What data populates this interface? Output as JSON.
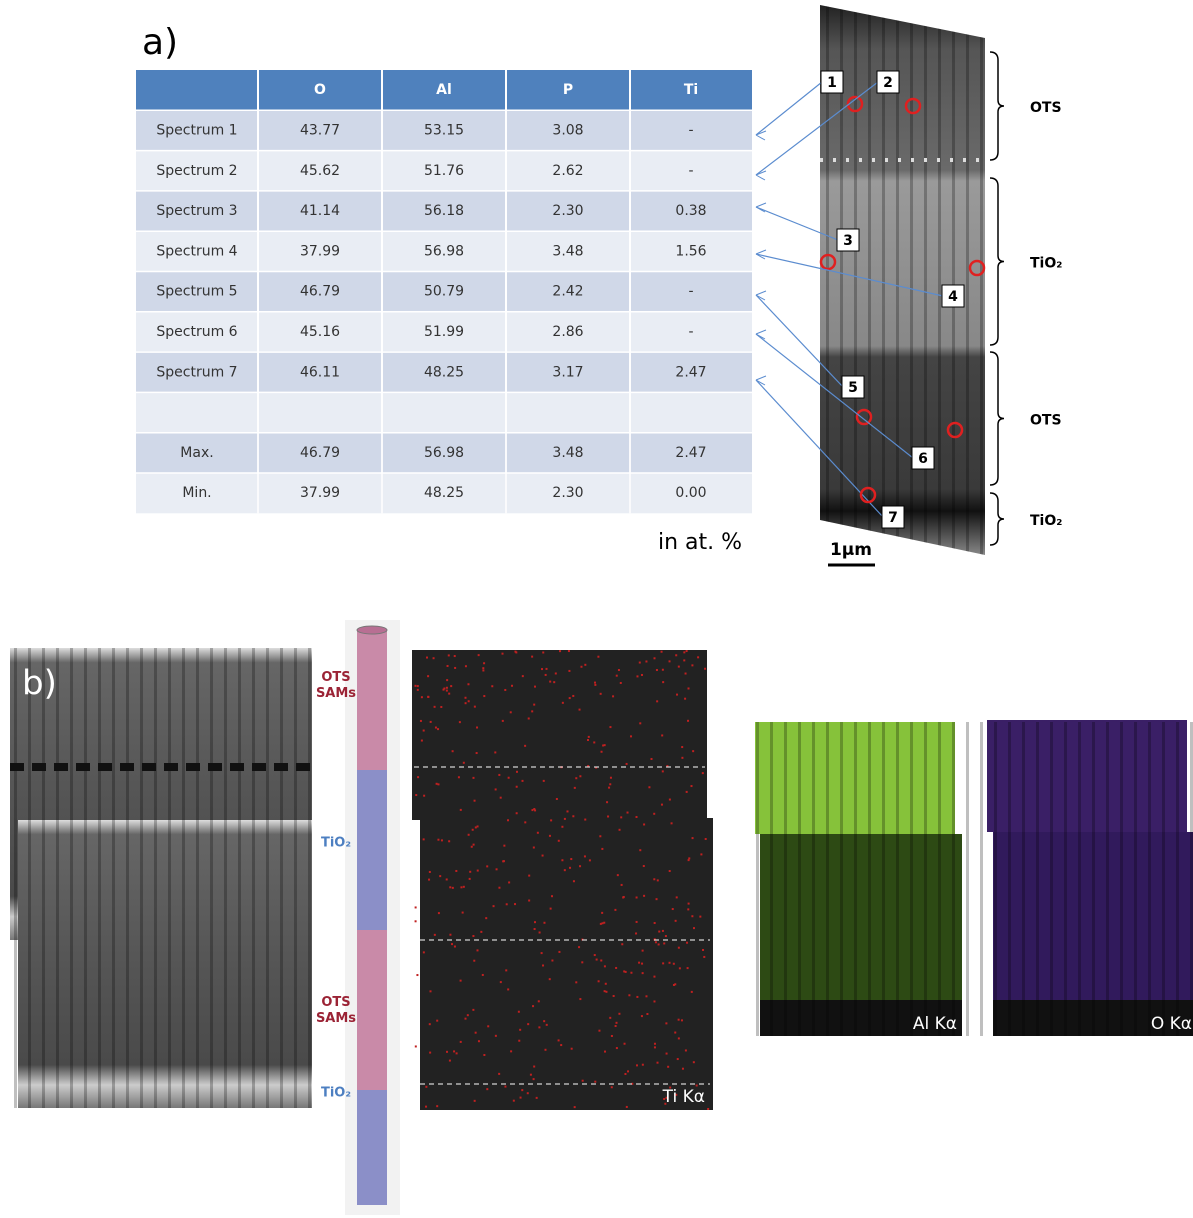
{
  "panel_a": {
    "label": "a)",
    "table": {
      "header": [
        "O",
        "Al",
        "P",
        "Ti"
      ],
      "rows": [
        [
          "Spectrum 1",
          "43.77",
          "53.15",
          "3.08",
          "-"
        ],
        [
          "Spectrum 2",
          "45.62",
          "51.76",
          "2.62",
          "-"
        ],
        [
          "Spectrum 3",
          "41.14",
          "56.18",
          "2.30",
          "0.38"
        ],
        [
          "Spectrum 4",
          "37.99",
          "56.98",
          "3.48",
          "1.56"
        ],
        [
          "Spectrum 5",
          "46.79",
          "50.79",
          "2.42",
          "-"
        ],
        [
          "Spectrum 6",
          "45.16",
          "51.99",
          "2.86",
          "-"
        ],
        [
          "Spectrum 7",
          "46.11",
          "48.25",
          "3.17",
          "2.47"
        ]
      ],
      "summary": [
        [
          "Max.",
          "46.79",
          "56.98",
          "3.48",
          "2.47"
        ],
        [
          "Min.",
          "37.99",
          "48.25",
          "2.30",
          "0.00"
        ]
      ]
    },
    "unit": "in at. %",
    "points": [
      "1",
      "2",
      "3",
      "4",
      "5",
      "6",
      "7"
    ],
    "layers": [
      "OTS",
      "TiO₂",
      "OTS",
      "TiO₂"
    ],
    "scale_bar": "1µm"
  },
  "panel_b": {
    "label": "b)",
    "tube_labels": [
      "OTS SAMs",
      "TiO₂",
      "OTS SAMs",
      "TiO₂"
    ],
    "maps": [
      "Ti Kα",
      "Al Kα",
      "O Kα"
    ]
  }
}
